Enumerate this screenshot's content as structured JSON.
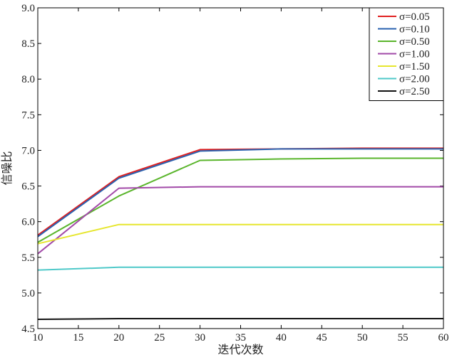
{
  "chart_data": {
    "type": "line",
    "title": "",
    "xlabel": "迭代次数",
    "ylabel": "信噪比",
    "xlim": [
      10,
      60
    ],
    "ylim": [
      4.5,
      9.0
    ],
    "xticks": [
      "10",
      "15",
      "20",
      "25",
      "30",
      "35",
      "40",
      "45",
      "50",
      "55",
      "60"
    ],
    "yticks": [
      "4.5",
      "5.0",
      "5.5",
      "6.0",
      "6.5",
      "7.0",
      "7.5",
      "8.0",
      "8.5",
      "9.0"
    ],
    "grid": false,
    "legend_position": "top-right",
    "x": [
      10,
      20,
      30,
      40,
      50,
      60
    ],
    "series": [
      {
        "name": "σ=0.05",
        "color": "#e02020",
        "values": [
          5.81,
          6.63,
          7.01,
          7.02,
          7.03,
          7.03
        ]
      },
      {
        "name": "σ=0.10",
        "color": "#2a62b0",
        "values": [
          5.79,
          6.61,
          6.99,
          7.02,
          7.02,
          7.02
        ]
      },
      {
        "name": "σ=0.50",
        "color": "#5ab52c",
        "values": [
          5.71,
          6.36,
          6.86,
          6.88,
          6.89,
          6.89
        ]
      },
      {
        "name": "σ=1.00",
        "color": "#a24aa8",
        "values": [
          5.55,
          6.47,
          6.49,
          6.49,
          6.49,
          6.49
        ]
      },
      {
        "name": "σ=1.50",
        "color": "#e6e62e",
        "values": [
          5.69,
          5.96,
          5.96,
          5.96,
          5.96,
          5.96
        ]
      },
      {
        "name": "σ=2.00",
        "color": "#4fc9c9",
        "values": [
          5.32,
          5.36,
          5.36,
          5.36,
          5.36,
          5.36
        ]
      },
      {
        "name": "σ=2.50",
        "color": "#111111",
        "values": [
          4.63,
          4.64,
          4.64,
          4.64,
          4.64,
          4.64
        ]
      }
    ]
  }
}
